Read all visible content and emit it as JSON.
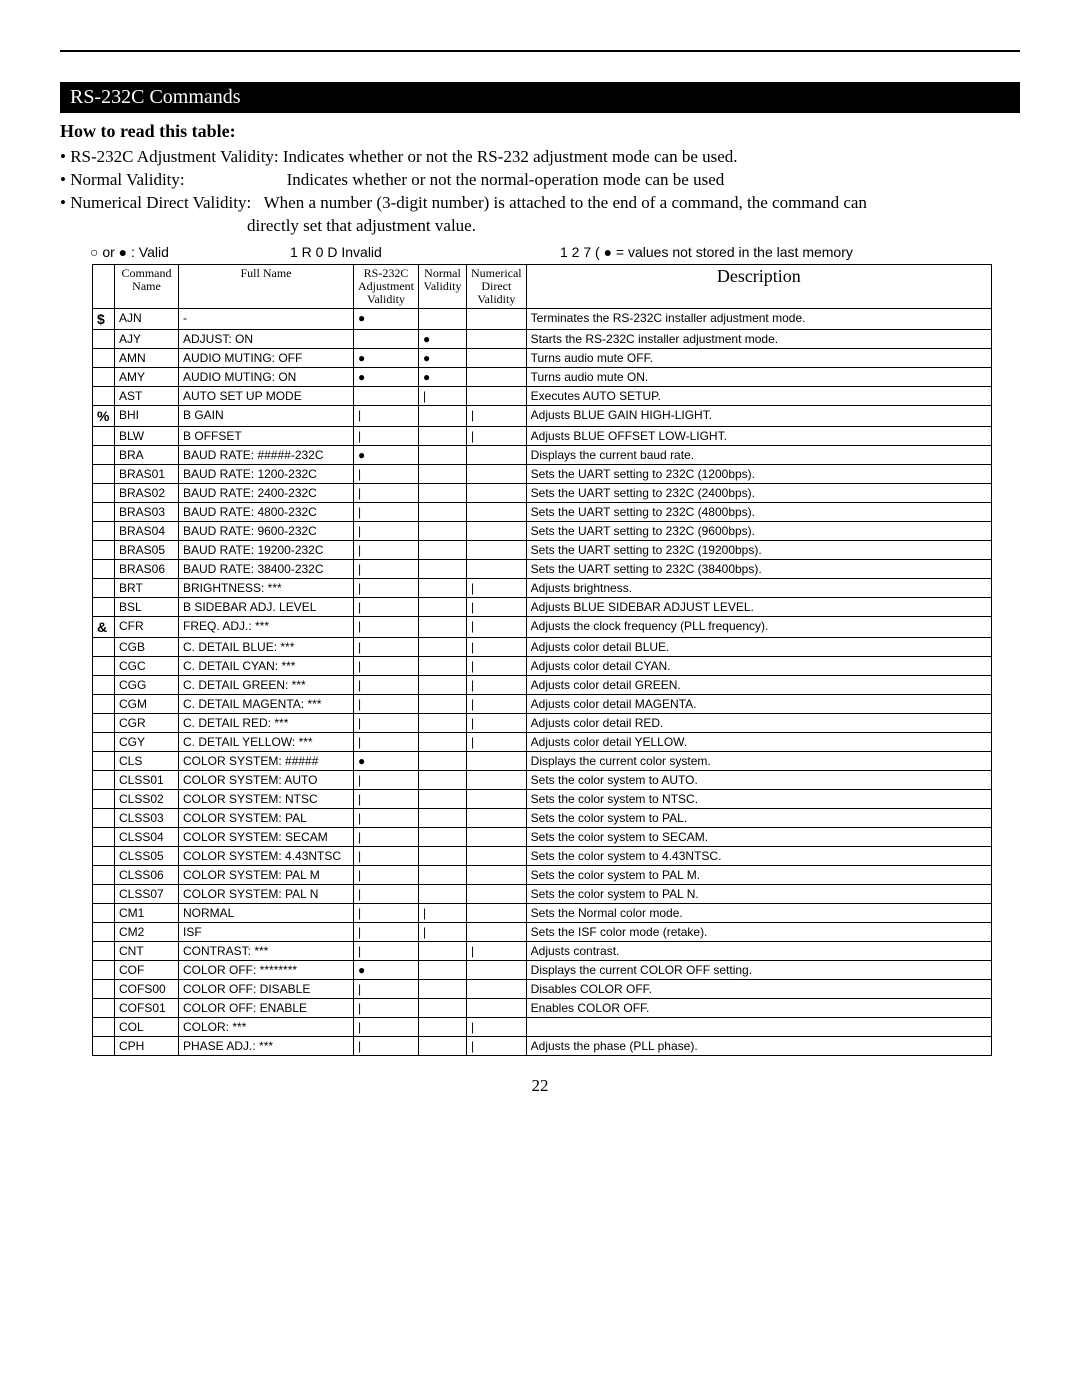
{
  "page": {
    "section_title": "RS-232C Commands",
    "subtitle": "How to read this table:",
    "intro": [
      {
        "label": "• RS-232C Adjustment Validity:",
        "desc": " Indicates whether or not the RS-232 adjustment mode can be used."
      },
      {
        "label": "• Normal Validity:",
        "desc": "                        Indicates whether or not the normal-operation mode can be used"
      },
      {
        "label": "• Numerical Direct Validity:",
        "desc": "   When a number (3-digit number) is attached to the end of a command, the command can"
      },
      {
        "label": "",
        "desc": "                                            directly set that adjustment value."
      }
    ],
    "legend": {
      "l1": "○ or ● : Valid",
      "l2": "1 R 0 D  Invalid",
      "l3": "1 2 7 (  ●  = values not stored in the last memory"
    },
    "page_number": "22"
  },
  "table": {
    "columns": [
      "",
      "Command Name",
      "Full Name",
      "RS-232C Adjustment Validity",
      "Normal Validity",
      "Numerical Direct Validity",
      "Description"
    ],
    "rows": [
      {
        "letter": "$",
        "cmd": "AJN",
        "full": "-",
        "v1": "●",
        "v2": "",
        "v3": "",
        "desc": "Terminates the RS-232C installer adjustment mode."
      },
      {
        "letter": "",
        "cmd": "AJY",
        "full": "ADJUST:  ON",
        "v1": "",
        "v2": "●",
        "v3": "",
        "desc": "Starts the RS-232C installer adjustment mode."
      },
      {
        "letter": "",
        "cmd": "AMN",
        "full": "AUDIO MUTING: OFF",
        "v1": "●",
        "v2": "●",
        "v3": "",
        "desc": "Turns audio mute OFF."
      },
      {
        "letter": "",
        "cmd": "AMY",
        "full": "AUDIO MUTING: ON",
        "v1": "●",
        "v2": "●",
        "v3": "",
        "desc": "Turns audio mute ON."
      },
      {
        "letter": "",
        "cmd": "AST",
        "full": "AUTO SET UP MODE",
        "v1": "",
        "v2": "|",
        "v3": "",
        "desc": "Executes AUTO SETUP."
      },
      {
        "letter": "%",
        "cmd": "BHI",
        "full": "B GAIN",
        "v1": "|",
        "v2": "",
        "v3": "|",
        "desc": "Adjusts BLUE GAIN HIGH-LIGHT."
      },
      {
        "letter": "",
        "cmd": "BLW",
        "full": "B OFFSET",
        "v1": "|",
        "v2": "",
        "v3": "|",
        "desc": "Adjusts BLUE OFFSET LOW-LIGHT."
      },
      {
        "letter": "",
        "cmd": "BRA",
        "full": "BAUD RATE: #####-232C",
        "v1": "●",
        "v2": "",
        "v3": "",
        "desc": "Displays the current baud rate."
      },
      {
        "letter": "",
        "cmd": "BRAS01",
        "full": "BAUD RATE: 1200-232C",
        "v1": "|",
        "v2": "",
        "v3": "",
        "desc": "Sets the UART setting  to 232C (1200bps)."
      },
      {
        "letter": "",
        "cmd": "BRAS02",
        "full": "BAUD RATE: 2400-232C",
        "v1": "|",
        "v2": "",
        "v3": "",
        "desc": "Sets the UART setting  to 232C (2400bps)."
      },
      {
        "letter": "",
        "cmd": "BRAS03",
        "full": "BAUD RATE: 4800-232C",
        "v1": "|",
        "v2": "",
        "v3": "",
        "desc": "Sets the UART setting  to 232C (4800bps)."
      },
      {
        "letter": "",
        "cmd": "BRAS04",
        "full": "BAUD RATE: 9600-232C",
        "v1": "|",
        "v2": "",
        "v3": "",
        "desc": "Sets the UART setting  to 232C (9600bps)."
      },
      {
        "letter": "",
        "cmd": "BRAS05",
        "full": "BAUD RATE: 19200-232C",
        "v1": "|",
        "v2": "",
        "v3": "",
        "desc": "Sets the UART setting  to 232C (19200bps)."
      },
      {
        "letter": "",
        "cmd": "BRAS06",
        "full": "BAUD RATE: 38400-232C",
        "v1": "|",
        "v2": "",
        "v3": "",
        "desc": "Sets the UART setting  to 232C (38400bps)."
      },
      {
        "letter": "",
        "cmd": "BRT",
        "full": "BRIGHTNESS: ***",
        "v1": "|",
        "v2": "",
        "v3": "|",
        "desc": "Adjusts brightness."
      },
      {
        "letter": "",
        "cmd": "BSL",
        "full": "B SIDEBAR ADJ. LEVEL",
        "v1": "|",
        "v2": "",
        "v3": "|",
        "desc": "Adjusts BLUE SIDEBAR ADJUST LEVEL."
      },
      {
        "letter": "&",
        "cmd": "CFR",
        "full": "FREQ. ADJ.: ***",
        "v1": "|",
        "v2": "",
        "v3": "|",
        "desc": "Adjusts the clock frequency (PLL frequency)."
      },
      {
        "letter": "",
        "cmd": "CGB",
        "full": "C. DETAIL BLUE: ***",
        "v1": "|",
        "v2": "",
        "v3": "|",
        "desc": "Adjusts color detail BLUE."
      },
      {
        "letter": "",
        "cmd": "CGC",
        "full": "C. DETAIL CYAN: ***",
        "v1": "|",
        "v2": "",
        "v3": "|",
        "desc": "Adjusts color detail CYAN."
      },
      {
        "letter": "",
        "cmd": "CGG",
        "full": "C. DETAIL GREEN: ***",
        "v1": "|",
        "v2": "",
        "v3": "|",
        "desc": "Adjusts color detail GREEN."
      },
      {
        "letter": "",
        "cmd": "CGM",
        "full": "C. DETAIL MAGENTA: ***",
        "v1": "|",
        "v2": "",
        "v3": "|",
        "desc": "Adjusts color detail MAGENTA."
      },
      {
        "letter": "",
        "cmd": "CGR",
        "full": "C. DETAIL RED: ***",
        "v1": "|",
        "v2": "",
        "v3": "|",
        "desc": "Adjusts color detail RED."
      },
      {
        "letter": "",
        "cmd": "CGY",
        "full": "C. DETAIL YELLOW: ***",
        "v1": "|",
        "v2": "",
        "v3": "|",
        "desc": "Adjusts color detail YELLOW."
      },
      {
        "letter": "",
        "cmd": "CLS",
        "full": "COLOR SYSTEM: #####",
        "v1": "●",
        "v2": "",
        "v3": "",
        "desc": "Displays the current color system."
      },
      {
        "letter": "",
        "cmd": "CLSS01",
        "full": "COLOR SYSTEM: AUTO",
        "v1": "|",
        "v2": "",
        "v3": "",
        "desc": "Sets the color system to AUTO."
      },
      {
        "letter": "",
        "cmd": "CLSS02",
        "full": "COLOR SYSTEM: NTSC",
        "v1": "|",
        "v2": "",
        "v3": "",
        "desc": "Sets the color system to NTSC."
      },
      {
        "letter": "",
        "cmd": "CLSS03",
        "full": "COLOR SYSTEM: PAL",
        "v1": "|",
        "v2": "",
        "v3": "",
        "desc": "Sets the color system to PAL."
      },
      {
        "letter": "",
        "cmd": "CLSS04",
        "full": "COLOR SYSTEM: SECAM",
        "v1": "|",
        "v2": "",
        "v3": "",
        "desc": "Sets the color system to SECAM."
      },
      {
        "letter": "",
        "cmd": "CLSS05",
        "full": "COLOR SYSTEM: 4.43NTSC",
        "v1": "|",
        "v2": "",
        "v3": "",
        "desc": "Sets the color system to 4.43NTSC."
      },
      {
        "letter": "",
        "cmd": "CLSS06",
        "full": "COLOR SYSTEM: PAL M",
        "v1": "|",
        "v2": "",
        "v3": "",
        "desc": "Sets the color system to PAL M."
      },
      {
        "letter": "",
        "cmd": "CLSS07",
        "full": "COLOR SYSTEM: PAL N",
        "v1": "|",
        "v2": "",
        "v3": "",
        "desc": "Sets the color system to PAL N."
      },
      {
        "letter": "",
        "cmd": "CM1",
        "full": "NORMAL",
        "v1": "|",
        "v2": "|",
        "v3": "",
        "desc": "Sets the Normal color mode."
      },
      {
        "letter": "",
        "cmd": "CM2",
        "full": "ISF",
        "v1": "|",
        "v2": "|",
        "v3": "",
        "desc": "Sets the ISF color mode (retake)."
      },
      {
        "letter": "",
        "cmd": "CNT",
        "full": "CONTRAST: ***",
        "v1": "|",
        "v2": "",
        "v3": "|",
        "desc": "Adjusts contrast."
      },
      {
        "letter": "",
        "cmd": "COF",
        "full": "COLOR OFF: ********",
        "v1": "●",
        "v2": "",
        "v3": "",
        "desc": "Displays the current COLOR OFF setting."
      },
      {
        "letter": "",
        "cmd": "COFS00",
        "full": "COLOR OFF: DISABLE",
        "v1": "|",
        "v2": "",
        "v3": "",
        "desc": "Disables COLOR OFF."
      },
      {
        "letter": "",
        "cmd": "COFS01",
        "full": "COLOR OFF: ENABLE",
        "v1": "|",
        "v2": "",
        "v3": "",
        "desc": "Enables COLOR OFF."
      },
      {
        "letter": "",
        "cmd": "COL",
        "full": "COLOR: ***",
        "v1": "|",
        "v2": "",
        "v3": "|",
        "desc": ""
      },
      {
        "letter": "",
        "cmd": "CPH",
        "full": "PHASE ADJ.: ***",
        "v1": "|",
        "v2": "",
        "v3": "|",
        "desc": "Adjusts the phase (PLL phase)."
      }
    ]
  },
  "style": {
    "text_color": "#000000",
    "bg_color": "#ffffff",
    "header_bg": "#000000",
    "header_fg": "#ffffff"
  }
}
